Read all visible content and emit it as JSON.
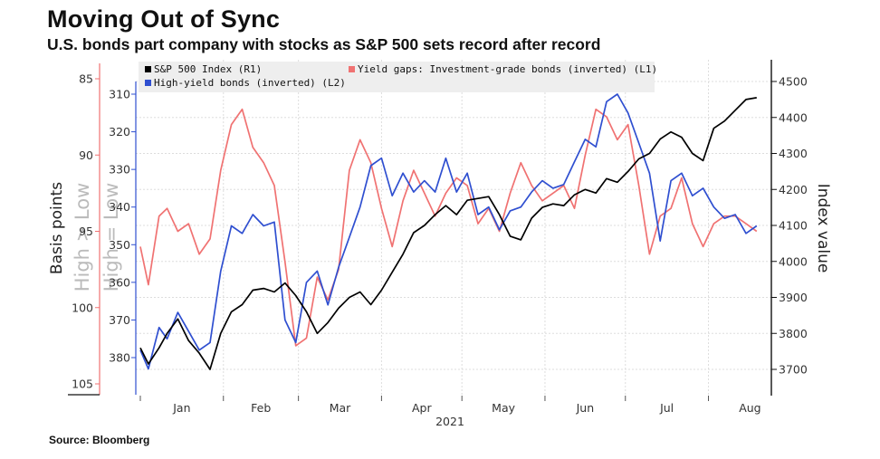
{
  "title": "Moving Out of Sync",
  "subtitle": "U.S. bonds part company with stocks as S&P 500 sets record after record",
  "source": "Source: Bloomberg",
  "chart_data": {
    "type": "line",
    "xlabel": "2021",
    "months": [
      "Jan",
      "Feb",
      "Mar",
      "Apr",
      "May",
      "Jun",
      "Jul",
      "Aug"
    ],
    "left_axis_l1": {
      "title": "Basis points",
      "ghost_label": "High > Low",
      "ticks": [
        85,
        90,
        95,
        100,
        105
      ],
      "range": [
        85,
        105
      ],
      "inverted": true
    },
    "left_axis_l2": {
      "ghost_label": "High = Low",
      "ticks": [
        310,
        320,
        330,
        340,
        350,
        360,
        370,
        380
      ],
      "range": [
        308,
        385
      ],
      "inverted": true
    },
    "right_axis_r1": {
      "title": "Index value",
      "ticks": [
        3700,
        3800,
        3900,
        4000,
        4100,
        4200,
        4300,
        4400,
        4500
      ],
      "range": [
        3625,
        4510
      ]
    },
    "legend": [
      "S&P 500 Index (R1)",
      "Yield gaps: Investment-grade bonds (inverted) (L1)",
      "High-yield bonds (inverted) (L2)"
    ],
    "colors": {
      "sp500": "#000000",
      "ig": "#f07272",
      "hy": "#2f4fd0",
      "grid": "#dddddd",
      "legend_bg": "#eeeeee"
    },
    "series": [
      {
        "name": "S&P 500 Index (R1)",
        "axis": "R1",
        "x": [
          0,
          3,
          7,
          10,
          14,
          18,
          22,
          26,
          30,
          34,
          38,
          42,
          46,
          50,
          54,
          58,
          62,
          66,
          70,
          74,
          78,
          82,
          86,
          90,
          94,
          98,
          102,
          106,
          110,
          114,
          118,
          122,
          126,
          130,
          134,
          138,
          142,
          146,
          150,
          154,
          158,
          162,
          166,
          170,
          174,
          178,
          182,
          186,
          190,
          194,
          198,
          202,
          206,
          210,
          214,
          218,
          222,
          226,
          230
        ],
        "values": [
          3760,
          3715,
          3760,
          3800,
          3840,
          3780,
          3745,
          3700,
          3800,
          3860,
          3880,
          3920,
          3925,
          3915,
          3940,
          3905,
          3860,
          3800,
          3830,
          3870,
          3900,
          3915,
          3880,
          3920,
          3970,
          4020,
          4080,
          4100,
          4130,
          4155,
          4130,
          4170,
          4175,
          4180,
          4130,
          4070,
          4060,
          4120,
          4150,
          4160,
          4155,
          4185,
          4200,
          4190,
          4230,
          4220,
          4250,
          4285,
          4300,
          4340,
          4360,
          4345,
          4300,
          4280,
          4370,
          4390,
          4420,
          4450,
          4455
        ]
      },
      {
        "name": "Yield gaps: Investment-grade bonds (inverted) (L1)",
        "axis": "L1",
        "x": [
          0,
          3,
          7,
          10,
          14,
          18,
          22,
          26,
          30,
          34,
          38,
          42,
          46,
          50,
          54,
          58,
          62,
          66,
          70,
          74,
          78,
          82,
          86,
          90,
          94,
          98,
          102,
          106,
          110,
          114,
          118,
          122,
          126,
          130,
          134,
          138,
          142,
          146,
          150,
          154,
          158,
          162,
          166,
          170,
          174,
          178,
          182,
          186,
          190,
          194,
          198,
          202,
          206,
          210,
          214,
          218,
          222,
          226,
          230
        ],
        "values": [
          96,
          98.5,
          94,
          93.5,
          95,
          94.5,
          96.5,
          95.5,
          91,
          88,
          87,
          89.5,
          90.5,
          92,
          97,
          102.5,
          102,
          98,
          99.5,
          97.5,
          91,
          89,
          90.5,
          93.5,
          96,
          93,
          91,
          92.5,
          94,
          92.5,
          91.5,
          92,
          94.5,
          93.5,
          95,
          92.5,
          90.5,
          92,
          93,
          92.5,
          92,
          93.5,
          90,
          87,
          87.5,
          89,
          88,
          92,
          96.5,
          94,
          93.5,
          91.5,
          94.5,
          96,
          94.5,
          94,
          94,
          94.5,
          95
        ]
      },
      {
        "name": "High-yield bonds (inverted) (L2)",
        "axis": "L2",
        "x": [
          0,
          3,
          7,
          10,
          14,
          18,
          22,
          26,
          30,
          34,
          38,
          42,
          46,
          50,
          54,
          58,
          62,
          66,
          70,
          74,
          78,
          82,
          86,
          90,
          94,
          98,
          102,
          106,
          110,
          114,
          118,
          122,
          126,
          130,
          134,
          138,
          142,
          146,
          150,
          154,
          158,
          162,
          166,
          170,
          174,
          178,
          182,
          186,
          190,
          194,
          198,
          202,
          206,
          210,
          214,
          218,
          222,
          226,
          230
        ],
        "values": [
          378,
          383,
          372,
          375,
          368,
          373,
          378,
          376,
          357,
          345,
          347,
          342,
          345,
          344,
          370,
          376,
          360,
          357,
          366,
          356,
          348,
          340,
          329,
          327,
          337,
          331,
          336,
          333,
          336,
          327,
          336,
          331,
          342,
          340,
          346,
          341,
          340,
          336,
          333,
          335,
          334,
          328,
          322,
          324,
          312,
          310,
          315,
          323,
          331,
          349,
          333,
          331,
          337,
          335,
          340,
          343,
          342,
          347,
          345
        ]
      }
    ]
  }
}
